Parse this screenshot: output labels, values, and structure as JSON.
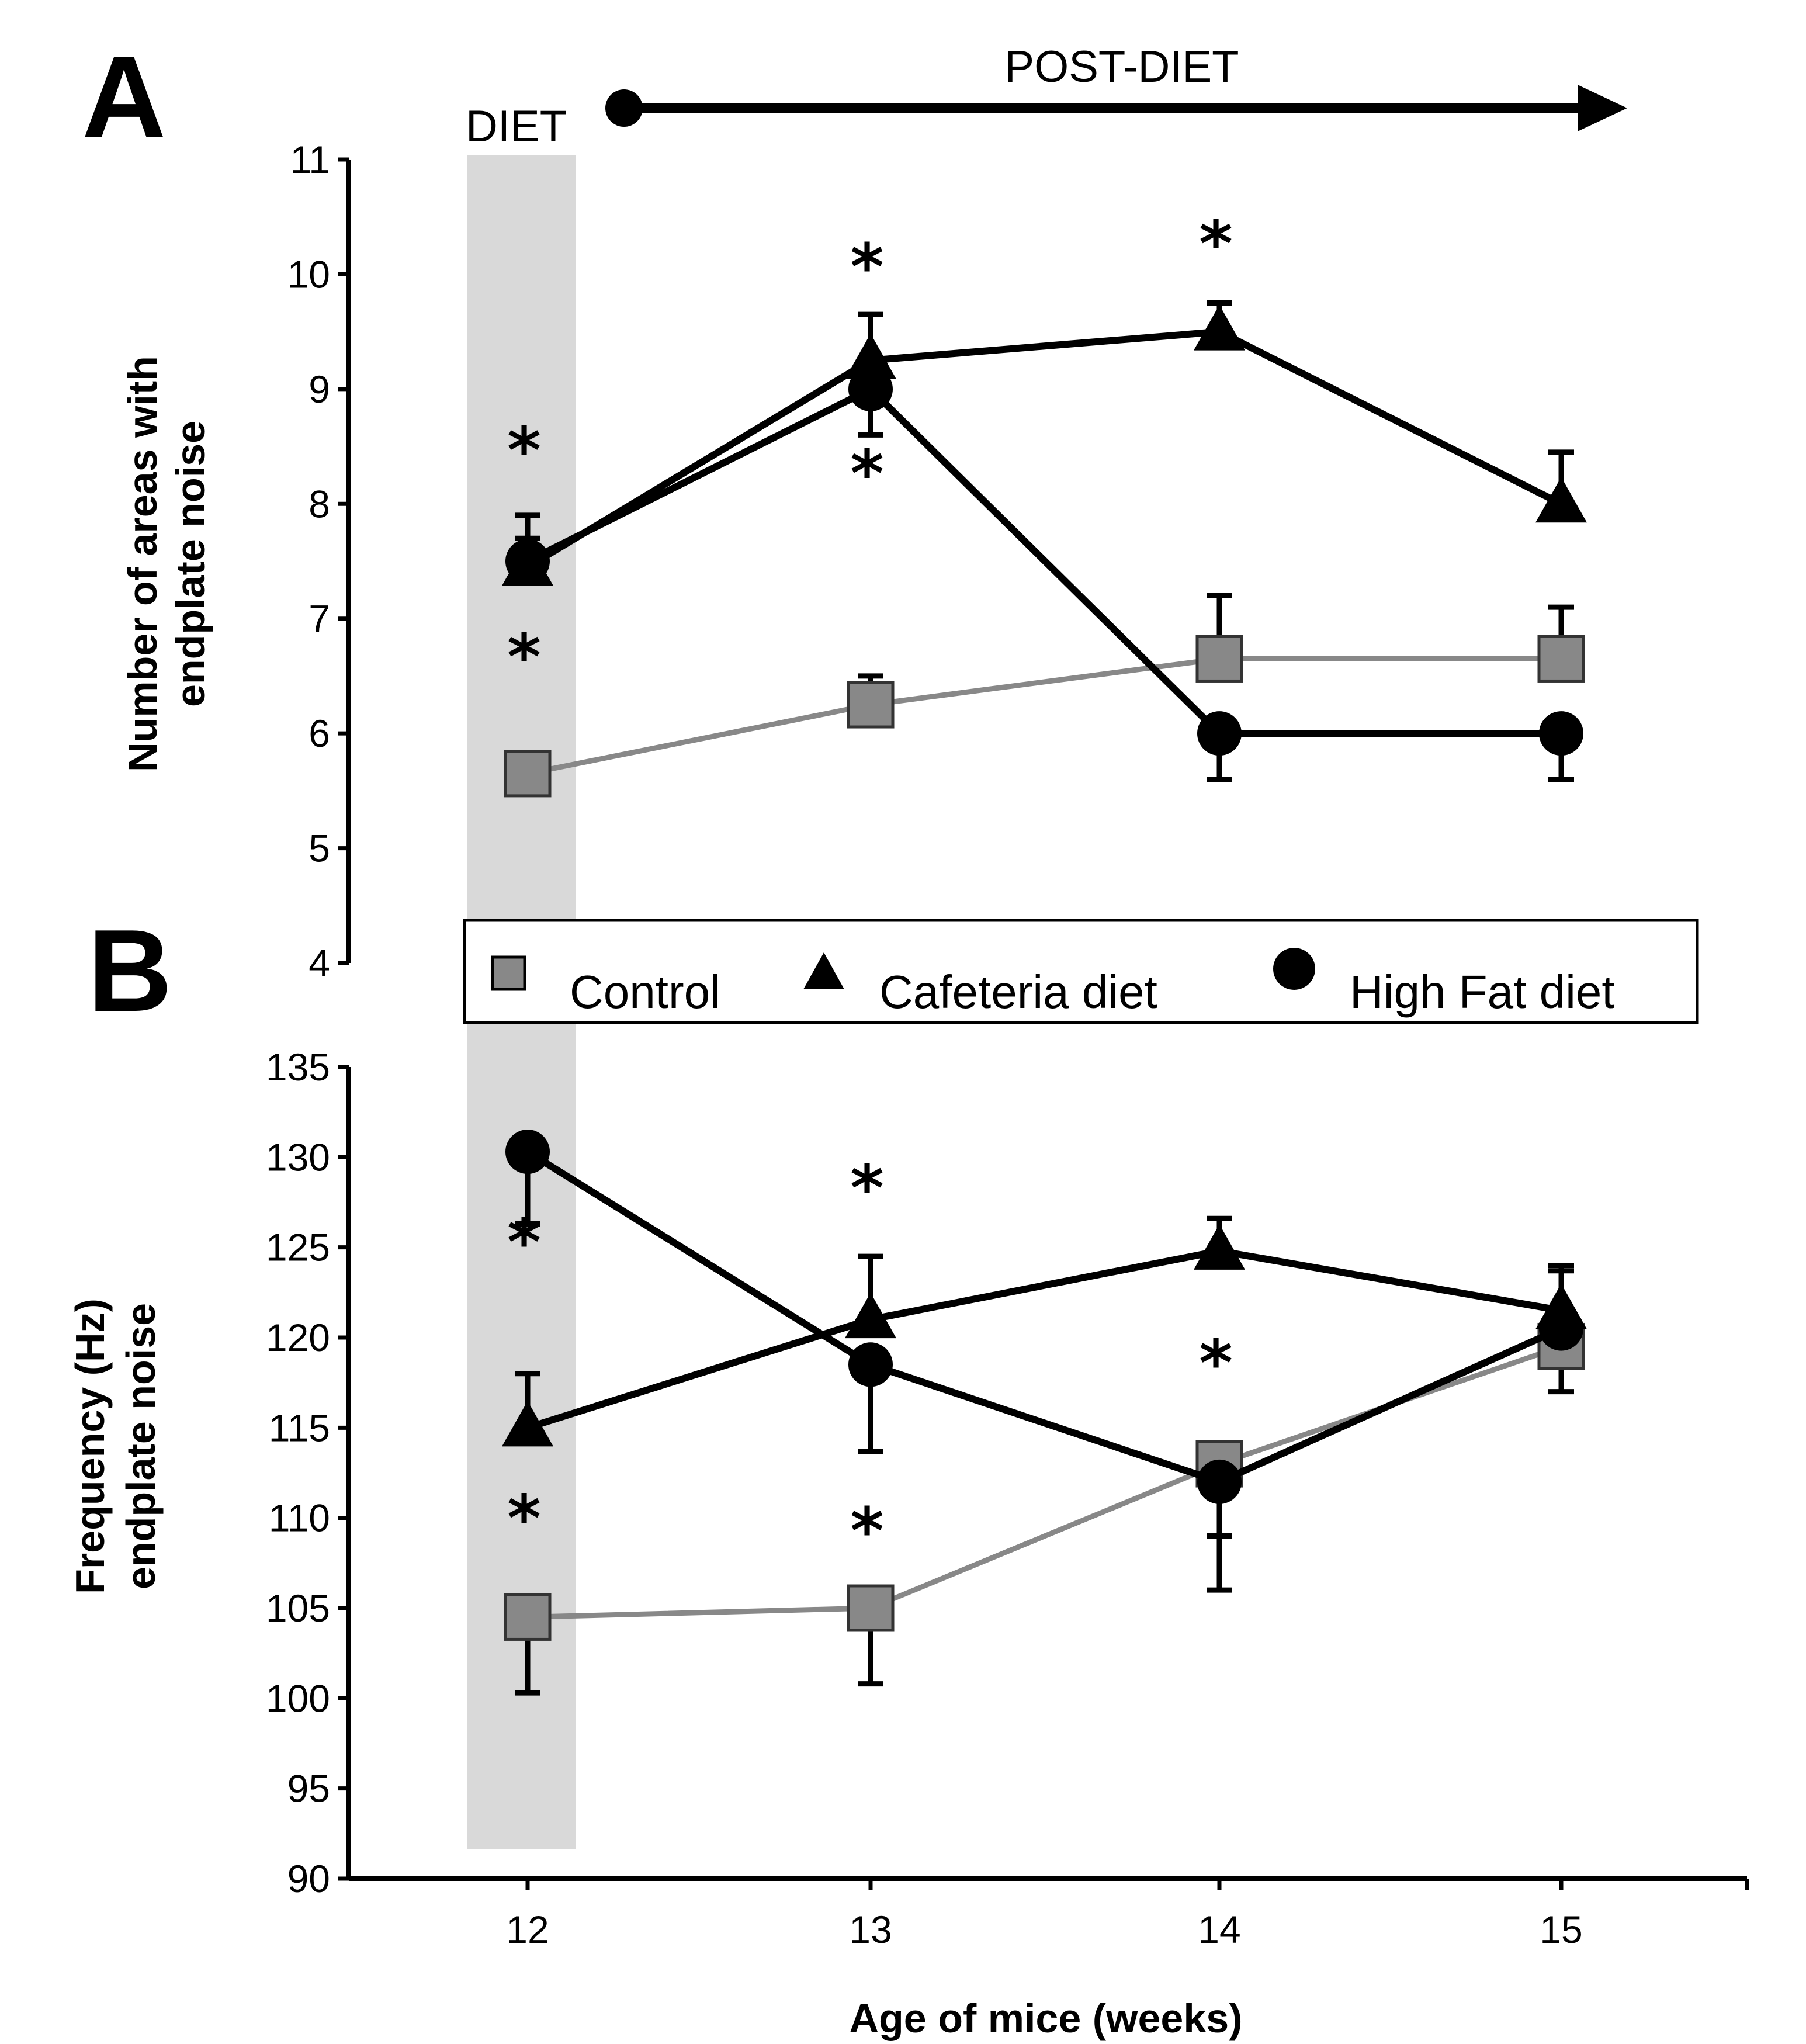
{
  "chart_data": [
    {
      "type": "line",
      "panel": "A",
      "title": "",
      "xlabel": "",
      "ylabel_lines": [
        "Number of areas with",
        "endplate noise"
      ],
      "x": [
        12,
        13,
        14,
        15
      ],
      "ylim": [
        4,
        11
      ],
      "yticks": [
        4,
        5,
        6,
        7,
        8,
        9,
        10,
        11
      ],
      "series": [
        {
          "name": "Control",
          "marker": "square",
          "color": "#888888",
          "values": [
            5.65,
            6.25,
            6.65,
            6.65
          ],
          "err": [
            0.0,
            0.25,
            0.55,
            0.45
          ]
        },
        {
          "name": "Cafeteria diet",
          "marker": "triangle",
          "color": "#000000",
          "values": [
            7.45,
            9.25,
            9.5,
            8.0
          ],
          "err": [
            0.25,
            0.4,
            0.25,
            0.45
          ]
        },
        {
          "name": "High Fat diet",
          "marker": "circle",
          "color": "#000000",
          "values": [
            7.5,
            9.0,
            6.0,
            6.0
          ],
          "err": [
            0.4,
            0.4,
            0.4,
            0.4
          ]
        }
      ],
      "annotations": [
        {
          "text": "*",
          "x": 12,
          "y": 8.5
        },
        {
          "text": "*",
          "x": 12,
          "y": 6.7
        },
        {
          "text": "*",
          "x": 13,
          "y": 10.1
        },
        {
          "text": "*",
          "x": 13,
          "y": 8.3
        },
        {
          "text": "*",
          "x": 14,
          "y": 10.3
        }
      ]
    },
    {
      "type": "line",
      "panel": "B",
      "title": "",
      "xlabel": "Age of mice (weeks)",
      "ylabel_lines": [
        "Frequency (Hz)",
        "endplate noise"
      ],
      "x": [
        12,
        13,
        14,
        15
      ],
      "xticks": [
        12,
        13,
        14,
        15
      ],
      "ylim": [
        90,
        135
      ],
      "yticks": [
        90,
        95,
        100,
        105,
        110,
        115,
        120,
        125,
        130,
        135
      ],
      "series": [
        {
          "name": "Control",
          "marker": "square",
          "color": "#888888",
          "values": [
            104.5,
            105.0,
            113.0,
            119.5
          ],
          "err": [
            4.2,
            4.2,
            4.0,
            2.5
          ]
        },
        {
          "name": "Cafeteria diet",
          "marker": "triangle",
          "color": "#000000",
          "values": [
            115.0,
            121.0,
            124.8,
            121.5
          ],
          "err": [
            3.0,
            3.5,
            1.8,
            2.5
          ]
        },
        {
          "name": "High Fat diet",
          "marker": "circle",
          "color": "#000000",
          "values": [
            130.3,
            118.5,
            112.0,
            120.5
          ],
          "err": [
            4.0,
            4.8,
            6.0,
            3.2
          ]
        }
      ],
      "annotations": [
        {
          "text": "*",
          "x": 12,
          "y": 125.5
        },
        {
          "text": "*",
          "x": 12,
          "y": 110.2
        },
        {
          "text": "*",
          "x": 13,
          "y": 128.5
        },
        {
          "text": "*",
          "x": 13,
          "y": 109.5
        },
        {
          "text": "*",
          "x": 14,
          "y": 118.8
        }
      ]
    }
  ],
  "panel_labels": {
    "a": "A",
    "b": "B"
  },
  "phases": {
    "diet": "DIET",
    "post_diet": "POST-DIET"
  },
  "legend": {
    "items": [
      {
        "label": "Control",
        "marker": "square"
      },
      {
        "label": "Cafeteria diet",
        "marker": "triangle"
      },
      {
        "label": "High Fat diet",
        "marker": "circle"
      }
    ]
  },
  "colors": {
    "control": "#888888",
    "diet_band": "#d9d9d9",
    "axis": "#000000"
  }
}
